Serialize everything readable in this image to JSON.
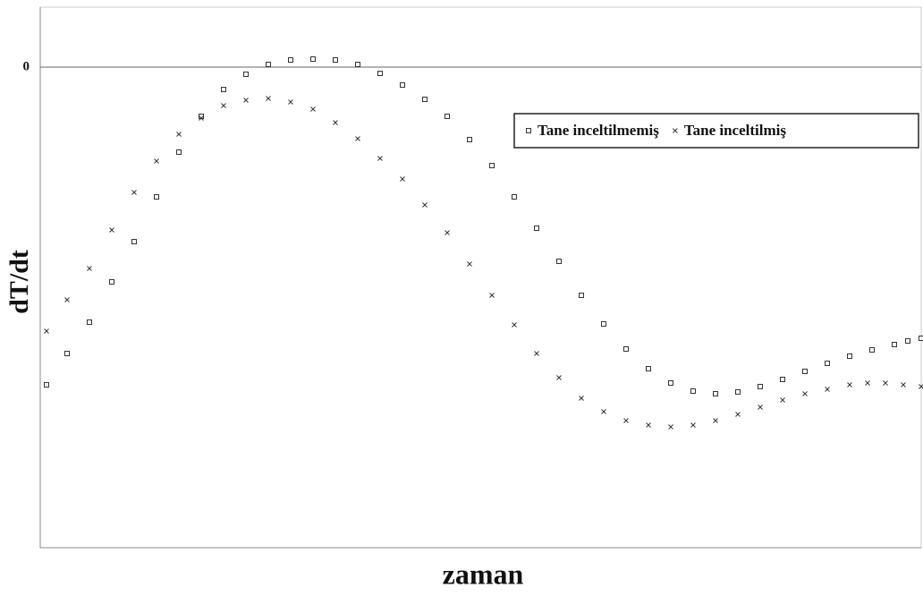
{
  "chart_data": {
    "type": "scatter",
    "xlabel": "zaman",
    "ylabel": "dT/dt",
    "xlim": [
      0,
      98.5
    ],
    "ylim": [
      -26.85,
      3.35
    ],
    "yticks": [
      0
    ],
    "grid": true,
    "legend": "upper right",
    "series": [
      {
        "name": "Tane inceltilmemiş",
        "color": "#333333",
        "marker": "square",
        "x": [
          0.7,
          3,
          5.5,
          8,
          10.5,
          13,
          15.5,
          18,
          20.5,
          23,
          25.5,
          28,
          30.5,
          33,
          35.5,
          38,
          40.5,
          43,
          45.5,
          48,
          50.5,
          53,
          55.5,
          58,
          60.5,
          63,
          65.5,
          68,
          70.5,
          73,
          75.5,
          78,
          80.5,
          83,
          85.5,
          88,
          90.5,
          93,
          95.5,
          97,
          98.5
        ],
        "values": [
          -17.75,
          -16,
          -14.25,
          -12,
          -9.75,
          -7.25,
          -4.75,
          -2.75,
          -1.25,
          -0.4,
          0.15,
          0.4,
          0.45,
          0.4,
          0.15,
          -0.35,
          -1,
          -1.8,
          -2.75,
          -4.05,
          -5.5,
          -7.25,
          -9,
          -10.85,
          -12.75,
          -14.35,
          -15.75,
          -16.85,
          -17.65,
          -18.1,
          -18.25,
          -18.15,
          -17.85,
          -17.45,
          -17,
          -16.55,
          -16.15,
          -15.8,
          -15.5,
          -15.3,
          -15.15
        ]
      },
      {
        "name": "Tane inceltilmiş",
        "color": "#333333",
        "marker": "x",
        "x": [
          0.7,
          3,
          5.5,
          8,
          10.5,
          13,
          15.5,
          18,
          20.5,
          23,
          25.5,
          28,
          30.5,
          33,
          35.5,
          38,
          40.5,
          43,
          45.5,
          48,
          50.5,
          53,
          55.5,
          58,
          60.5,
          63,
          65.5,
          68,
          70.5,
          73,
          75.5,
          78,
          80.5,
          83,
          85.5,
          88,
          90.5,
          92.5,
          94.5,
          96.5,
          98.5
        ],
        "values": [
          -14.75,
          -13,
          -11.25,
          -9.1,
          -7,
          -5.25,
          -3.75,
          -2.85,
          -2.15,
          -1.85,
          -1.75,
          -1.95,
          -2.35,
          -3.1,
          -4,
          -5.1,
          -6.25,
          -7.7,
          -9.25,
          -11,
          -12.75,
          -14.4,
          -16,
          -17.35,
          -18.5,
          -19.25,
          -19.75,
          -20,
          -20.1,
          -20,
          -19.75,
          -19.4,
          -19,
          -18.6,
          -18.25,
          -18,
          -17.75,
          -17.65,
          -17.65,
          -17.75,
          -17.85
        ]
      }
    ]
  }
}
